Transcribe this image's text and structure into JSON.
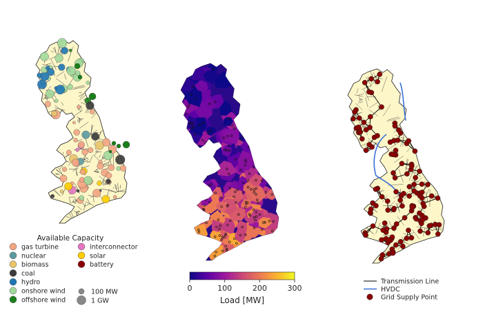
{
  "capacity_legend": {
    "title": "Available Capacity",
    "entries": [
      {
        "label": "gas turbine",
        "color": "#f4a582"
      },
      {
        "label": "nuclear",
        "color": "#5b9aa0"
      },
      {
        "label": "biomass",
        "color": "#e9c46a"
      },
      {
        "label": "coal",
        "color": "#3a3a3a"
      },
      {
        "label": "hydro",
        "color": "#1f77b4"
      },
      {
        "label": "onshore wind",
        "color": "#a1d99b"
      },
      {
        "label": "offshore wind",
        "color": "#1a7f1a"
      },
      {
        "label": "interconnector",
        "color": "#e377c2"
      },
      {
        "label": "solar",
        "color": "#ffcc00"
      },
      {
        "label": "battery",
        "color": "#8b0000"
      }
    ],
    "size_entries": [
      {
        "label": "100 MW"
      },
      {
        "label": "1 GW"
      }
    ]
  },
  "colorbar": {
    "label": "Load [MW]",
    "min": 0,
    "max": 300,
    "ticks": [
      "0",
      "100",
      "200",
      "300"
    ],
    "colors": [
      "#0d0887",
      "#5c01a6",
      "#9c179e",
      "#cc4778",
      "#ed7953",
      "#fdb42f",
      "#f0f921"
    ]
  },
  "network_legend": {
    "entries": [
      {
        "label": "Transmission Line",
        "color": "#000000"
      },
      {
        "label": "HVDC",
        "color": "#3a6fd8"
      },
      {
        "label": "Grid Supply Point",
        "color": "#8b0000"
      }
    ]
  }
}
